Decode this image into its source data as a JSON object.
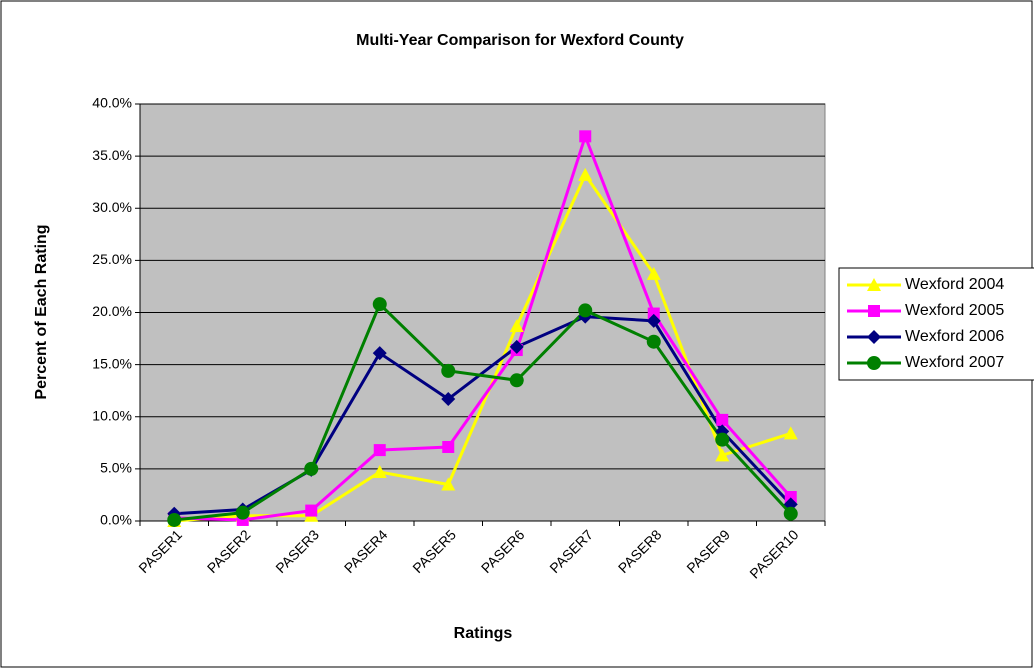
{
  "chart_data": {
    "type": "line",
    "title": "Multi-Year Comparison for Wexford County",
    "x_label": "Ratings",
    "y_label": "Percent of Each Rating",
    "categories": [
      "PASER1",
      "PASER2",
      "PASER3",
      "PASER4",
      "PASER5",
      "PASER6",
      "PASER7",
      "PASER8",
      "PASER9",
      "PASER10"
    ],
    "series": [
      {
        "name": "Wexford 2004",
        "color": "#ffff00",
        "marker": "triangle",
        "values": [
          0.0,
          0.5,
          0.5,
          4.7,
          3.5,
          18.7,
          33.2,
          23.7,
          6.3,
          8.4
        ]
      },
      {
        "name": "Wexford 2005",
        "color": "#ff00ff",
        "marker": "square",
        "values": [
          0.3,
          0.1,
          1.0,
          6.8,
          7.1,
          16.4,
          36.9,
          19.9,
          9.7,
          2.3
        ]
      },
      {
        "name": "Wexford 2006",
        "color": "#000080",
        "marker": "diamond",
        "values": [
          0.7,
          1.1,
          4.9,
          16.1,
          11.7,
          16.7,
          19.6,
          19.2,
          8.6,
          1.6
        ]
      },
      {
        "name": "Wexford 2007",
        "color": "#008000",
        "marker": "circle",
        "values": [
          0.1,
          0.8,
          5.0,
          20.8,
          14.4,
          13.5,
          20.2,
          17.2,
          7.8,
          0.7
        ]
      }
    ],
    "ylim": [
      0,
      40
    ],
    "yticks": [
      {
        "value": 0,
        "label": "0.0%"
      },
      {
        "value": 5,
        "label": "5.0%"
      },
      {
        "value": 10,
        "label": "10.0%"
      },
      {
        "value": 15,
        "label": "15.0%"
      },
      {
        "value": 20,
        "label": "20.0%"
      },
      {
        "value": 25,
        "label": "25.0%"
      },
      {
        "value": 30,
        "label": "30.0%"
      },
      {
        "value": 35,
        "label": "35.0%"
      },
      {
        "value": 40,
        "label": "40.0%"
      }
    ],
    "grid": true,
    "plot_background": "#c0c0c0",
    "legend": "right"
  }
}
